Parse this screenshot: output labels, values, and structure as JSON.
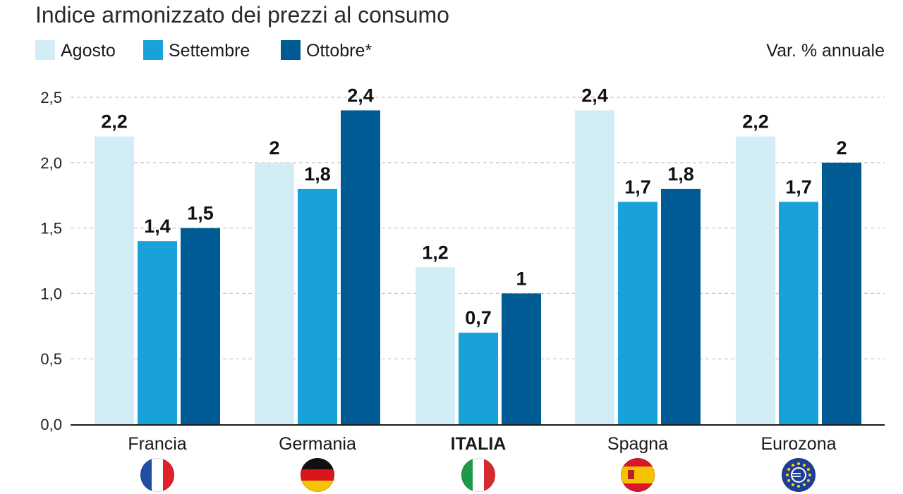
{
  "chart_data": {
    "type": "bar",
    "title": "Indice armonizzato dei prezzi al consumo",
    "unit_label": "Var. % annuale",
    "categories": [
      "Francia",
      "Germania",
      "ITALIA",
      "Spagna",
      "Eurozona"
    ],
    "highlight_category": "ITALIA",
    "series": [
      {
        "name": "Agosto",
        "color": "#d3edf6",
        "values": [
          2.2,
          2,
          1.2,
          2.4,
          2.2
        ],
        "labels": [
          "2,2",
          "2",
          "1,2",
          "2,4",
          "2,2"
        ]
      },
      {
        "name": "Settembre",
        "color": "#19a2da",
        "values": [
          1.4,
          1.8,
          0.7,
          1.7,
          1.7
        ],
        "labels": [
          "1,4",
          "1,8",
          "0,7",
          "1,7",
          "1,7"
        ]
      },
      {
        "name": "Ottobre*",
        "color": "#005a94",
        "values": [
          1.5,
          2.4,
          1,
          1.8,
          2
        ],
        "labels": [
          "1,5",
          "2,4",
          "1",
          "1,8",
          "2"
        ]
      }
    ],
    "ylim": [
      0,
      2.5
    ],
    "yticks": [
      0,
      0.5,
      1,
      1.5,
      2,
      2.5
    ],
    "ytick_labels": [
      "0,0",
      "0,5",
      "1,0",
      "1,5",
      "2,0",
      "2,5"
    ],
    "grid": true,
    "legend_position": "top-left",
    "flags": [
      "france-flag-icon",
      "germany-flag-icon",
      "italy-flag-icon",
      "spain-flag-icon",
      "euro-flag-icon"
    ]
  }
}
